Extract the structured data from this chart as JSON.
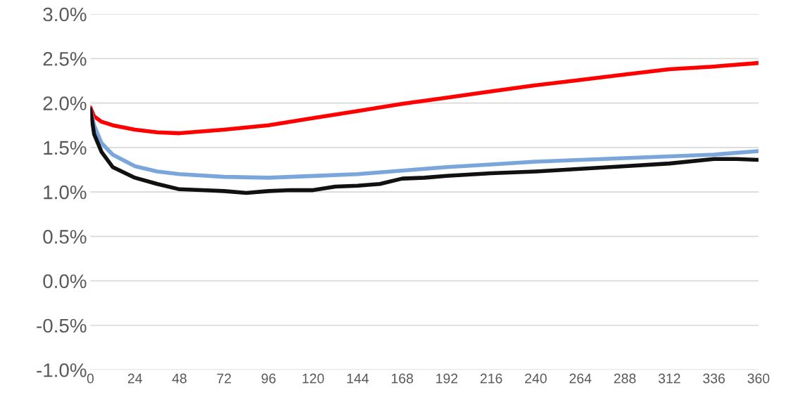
{
  "chart_data": {
    "type": "line",
    "series": [
      {
        "color": "#ff0000",
        "x": [
          0,
          2,
          6,
          12,
          24,
          36,
          48,
          72,
          96,
          120,
          144,
          168,
          192,
          216,
          240,
          264,
          288,
          312,
          336,
          360
        ],
        "values": [
          1.95,
          1.85,
          1.79,
          1.75,
          1.7,
          1.67,
          1.66,
          1.7,
          1.75,
          1.83,
          1.91,
          1.99,
          2.06,
          2.13,
          2.2,
          2.26,
          2.32,
          2.38,
          2.41,
          2.45
        ]
      },
      {
        "color": "#7aa6dc",
        "x": [
          0,
          2,
          6,
          12,
          24,
          36,
          48,
          72,
          96,
          120,
          144,
          168,
          192,
          216,
          240,
          264,
          288,
          312,
          336,
          360
        ],
        "values": [
          1.93,
          1.75,
          1.55,
          1.42,
          1.29,
          1.23,
          1.2,
          1.17,
          1.16,
          1.18,
          1.2,
          1.24,
          1.28,
          1.31,
          1.34,
          1.36,
          1.38,
          1.4,
          1.42,
          1.46
        ]
      },
      {
        "color": "#111111",
        "x": [
          0,
          2,
          6,
          12,
          24,
          36,
          48,
          60,
          72,
          84,
          96,
          108,
          120,
          132,
          144,
          156,
          168,
          180,
          192,
          216,
          240,
          264,
          288,
          312,
          336,
          348,
          360
        ],
        "values": [
          1.93,
          1.65,
          1.45,
          1.28,
          1.16,
          1.09,
          1.03,
          1.02,
          1.01,
          0.99,
          1.01,
          1.02,
          1.02,
          1.06,
          1.07,
          1.09,
          1.15,
          1.16,
          1.18,
          1.21,
          1.23,
          1.26,
          1.29,
          1.32,
          1.37,
          1.37,
          1.36
        ]
      }
    ],
    "xlim": [
      0,
      360
    ],
    "xticks": [
      0,
      24,
      48,
      72,
      96,
      120,
      144,
      168,
      192,
      216,
      240,
      264,
      288,
      312,
      336,
      360
    ],
    "ylim": [
      -1.0,
      3.0
    ],
    "yticks": [
      {
        "value": -1.0,
        "label": "-1.0%"
      },
      {
        "value": -0.5,
        "label": "-0.5%"
      },
      {
        "value": 0.0,
        "label": "0.0%"
      },
      {
        "value": 0.5,
        "label": "0.5%"
      },
      {
        "value": 1.0,
        "label": "1.0%"
      },
      {
        "value": 1.5,
        "label": "1.5%"
      },
      {
        "value": 2.0,
        "label": "2.0%"
      },
      {
        "value": 2.5,
        "label": "2.5%"
      },
      {
        "value": 3.0,
        "label": "3.0%"
      }
    ],
    "grid": "y",
    "marker": "none",
    "line_style": "solid"
  }
}
